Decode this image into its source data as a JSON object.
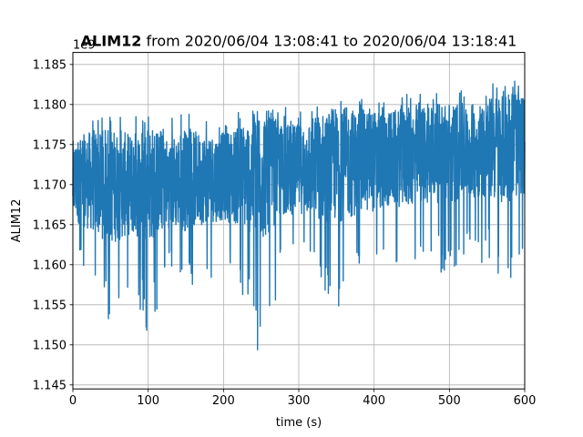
{
  "chart_data": {
    "type": "line",
    "title_bold": "ALIM12",
    "title_rest": " from 2020/06/04 13:08:41 to 2020/06/04 13:18:41",
    "xlabel": "time (s)",
    "ylabel": "ALIM12",
    "offset_text": "1e9",
    "xlim": [
      0,
      600
    ],
    "ylim": [
      1.1445,
      1.1865
    ],
    "x_ticks": [
      0,
      100,
      200,
      300,
      400,
      500,
      600
    ],
    "x_tick_labels": [
      "0",
      "100",
      "200",
      "300",
      "400",
      "500",
      "600"
    ],
    "y_ticks": [
      1.145,
      1.15,
      1.155,
      1.16,
      1.165,
      1.17,
      1.175,
      1.18,
      1.185
    ],
    "y_tick_labels": [
      "1.145",
      "1.150",
      "1.155",
      "1.160",
      "1.165",
      "1.170",
      "1.175",
      "1.180",
      "1.185"
    ],
    "grid": true,
    "line_color": "#1f77b4",
    "series": [
      {
        "x": [
          0,
          25,
          50,
          75,
          100,
          125,
          150,
          175,
          200,
          225,
          250,
          275,
          300,
          325,
          350,
          375,
          400,
          425,
          450,
          475,
          500,
          525,
          550,
          575,
          600
        ],
        "values": [
          1.1705,
          1.1705,
          1.1698,
          1.17,
          1.1702,
          1.1703,
          1.1705,
          1.1708,
          1.171,
          1.1712,
          1.1715,
          1.1718,
          1.172,
          1.1722,
          1.1725,
          1.1728,
          1.173,
          1.1732,
          1.1735,
          1.1738,
          1.174,
          1.1742,
          1.1745,
          1.1748,
          1.175
        ],
        "upper_envelope": [
          1.18,
          1.179,
          1.1785,
          1.179,
          1.1785,
          1.1785,
          1.179,
          1.1785,
          1.179,
          1.1795,
          1.179,
          1.1795,
          1.18,
          1.18,
          1.1805,
          1.1805,
          1.181,
          1.181,
          1.1815,
          1.1815,
          1.182,
          1.182,
          1.1825,
          1.1835,
          1.183
        ],
        "lower_envelope": [
          1.162,
          1.156,
          1.152,
          1.156,
          1.151,
          1.158,
          1.156,
          1.158,
          1.159,
          1.156,
          1.1465,
          1.158,
          1.16,
          1.156,
          1.154,
          1.156,
          1.158,
          1.159,
          1.159,
          1.16,
          1.158,
          1.161,
          1.16,
          1.1575,
          1.161
        ]
      }
    ]
  }
}
